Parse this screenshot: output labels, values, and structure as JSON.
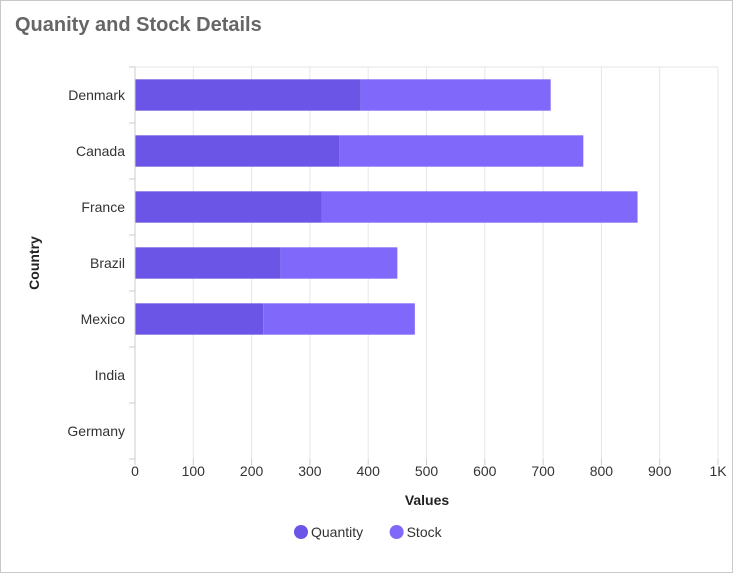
{
  "chart_data": {
    "type": "bar",
    "orientation": "horizontal",
    "stacked": true,
    "title": "Quanity and Stock Details",
    "xlabel": "Values",
    "ylabel": "Country",
    "categories": [
      "Denmark",
      "Canada",
      "France",
      "Brazil",
      "Mexico",
      "India",
      "Germany"
    ],
    "series": [
      {
        "name": "Quantity",
        "color": "#6a55e6",
        "values": [
          387,
          350,
          320,
          250,
          220,
          0,
          0
        ]
      },
      {
        "name": "Stock",
        "color": "#8068fb",
        "values": [
          326,
          419,
          542,
          200,
          260,
          0,
          0
        ]
      }
    ],
    "xlim": [
      0,
      1000
    ],
    "x_ticks": [
      0,
      100,
      200,
      300,
      400,
      500,
      600,
      700,
      800,
      900,
      1000
    ],
    "x_tick_labels": [
      "0",
      "100",
      "200",
      "300",
      "400",
      "500",
      "600",
      "700",
      "800",
      "900",
      "1K"
    ],
    "grid": true,
    "legend_position": "bottom-center"
  }
}
